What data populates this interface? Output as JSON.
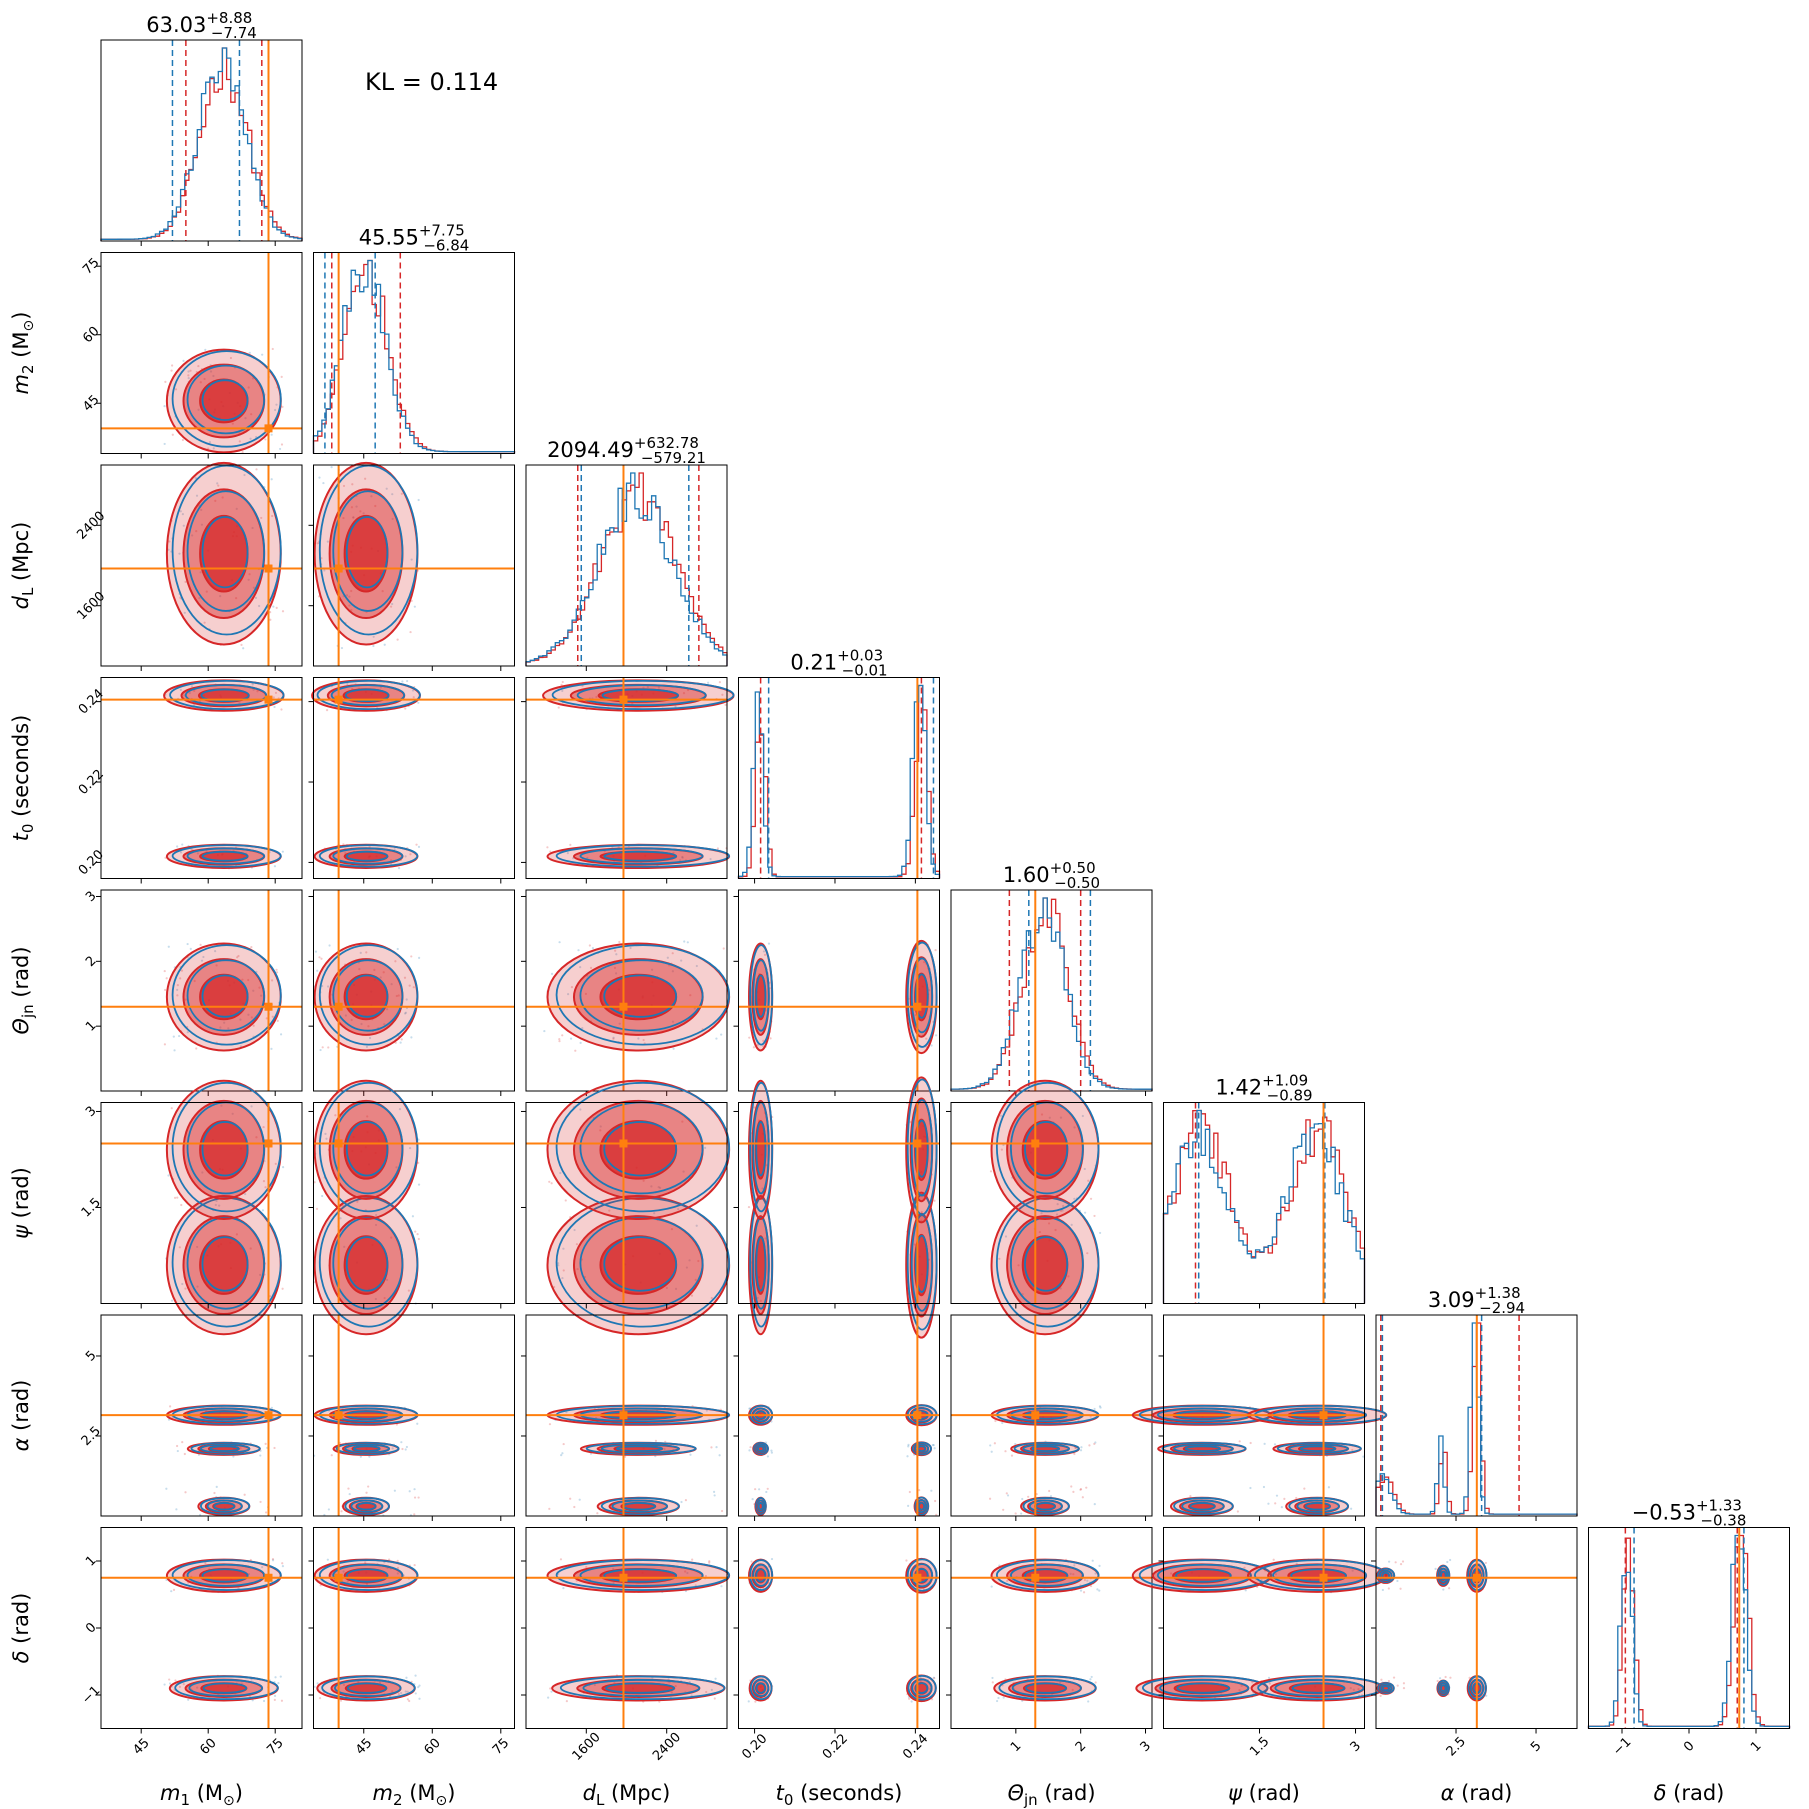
{
  "annotation": "KL = 0.114",
  "colors": {
    "posterior_a": "#d62728",
    "posterior_b": "#1f77b4",
    "truth": "#ff7f0e"
  },
  "chart_data": {
    "type": "corner",
    "series": [
      {
        "name": "",
        "color": "#d62728",
        "style": "filled contours + step histogram"
      },
      {
        "name": "",
        "color": "#1f77b4",
        "style": "line contours + step histogram"
      }
    ],
    "parameters": [
      {
        "key": "m1",
        "label_main": "m",
        "label_sub": "1",
        "label_unit": " (M",
        "label_unit_sub": "⊙",
        "label_close": ")",
        "range": [
          36,
          81
        ],
        "ticks": [
          45,
          60,
          75
        ],
        "truth": 73.5,
        "summary": {
          "median": "63.03",
          "plus": "+8.88",
          "minus": "−7.74"
        },
        "quantiles_a": [
          55,
          72
        ],
        "quantiles_b": [
          52,
          67
        ]
      },
      {
        "key": "m2",
        "label_main": "m",
        "label_sub": "2",
        "label_unit": " (M",
        "label_unit_sub": "⊙",
        "label_close": ")",
        "range": [
          34,
          78
        ],
        "ticks": [
          45,
          60,
          75
        ],
        "truth": 39.5,
        "summary": {
          "median": "45.55",
          "plus": "+7.75",
          "minus": "−6.84"
        },
        "quantiles_a": [
          38,
          53
        ],
        "quantiles_b": [
          36.5,
          47.5
        ]
      },
      {
        "key": "dL",
        "label_main": "d",
        "label_sub": "L",
        "label_unit": " (Mpc)",
        "label_unit_sub": "",
        "label_close": "",
        "range": [
          1000,
          3000
        ],
        "ticks": [
          1600,
          2400
        ],
        "truth": 1970,
        "summary": {
          "median": "2094.49",
          "plus": "+632.78",
          "minus": "−579.21"
        },
        "quantiles_a": [
          1515,
          2720
        ],
        "quantiles_b": [
          1550,
          2620
        ]
      },
      {
        "key": "t0",
        "label_main": "t",
        "label_sub": "0",
        "label_unit": " (seconds)",
        "label_unit_sub": "",
        "label_close": "",
        "range": [
          0.196,
          0.246
        ],
        "ticks": [
          0.2,
          0.22,
          0.24
        ],
        "truth": 0.2405,
        "summary": {
          "median": "0.21",
          "plus": "+0.03",
          "minus": "−0.01"
        },
        "quantiles_a": [
          0.2015,
          0.2415
        ],
        "quantiles_b": [
          0.2035,
          0.2445
        ]
      },
      {
        "key": "theta_jn",
        "label_main": "Θ",
        "label_sub": "jn",
        "label_unit": " (rad)",
        "label_unit_sub": "",
        "label_close": "",
        "range": [
          0,
          3.1
        ],
        "ticks": [
          1,
          2,
          3
        ],
        "truth": 1.3,
        "summary": {
          "median": "1.60",
          "plus": "+0.50",
          "minus": "−0.50"
        },
        "quantiles_a": [
          0.9,
          2.0
        ],
        "quantiles_b": [
          1.2,
          2.15
        ]
      },
      {
        "key": "psi",
        "label_main": "ψ",
        "label_sub": "",
        "label_unit": " (rad)",
        "label_unit_sub": "",
        "label_close": "",
        "range": [
          0,
          3.14
        ],
        "ticks": [
          1.5,
          3.0
        ],
        "truth": 2.5,
        "summary": {
          "median": "1.42",
          "plus": "+1.09",
          "minus": "−0.89"
        },
        "quantiles_a": [
          0.5,
          2.5
        ],
        "quantiles_b": [
          0.55,
          2.52
        ]
      },
      {
        "key": "alpha",
        "label_main": "α",
        "label_sub": "",
        "label_unit": " (rad)",
        "label_unit_sub": "",
        "label_close": "",
        "range": [
          0,
          6.28
        ],
        "ticks": [
          2.5,
          5.0
        ],
        "truth": 3.15,
        "summary": {
          "median": "3.09",
          "plus": "+1.38",
          "minus": "−2.94"
        },
        "quantiles_a": [
          0.15,
          4.47
        ],
        "quantiles_b": [
          0.2,
          3.3
        ]
      },
      {
        "key": "delta",
        "label_main": "δ",
        "label_sub": "",
        "label_unit": " (rad)",
        "label_unit_sub": "",
        "label_close": "",
        "range": [
          -1.5,
          1.5
        ],
        "ticks": [
          -1,
          0,
          1
        ],
        "truth": 0.75,
        "summary": {
          "median": "−0.53",
          "plus": "+1.33",
          "minus": "−0.38"
        },
        "quantiles_a": [
          -0.95,
          0.72
        ],
        "quantiles_b": [
          -0.82,
          0.82
        ]
      }
    ],
    "grid": false,
    "legend": "none"
  }
}
